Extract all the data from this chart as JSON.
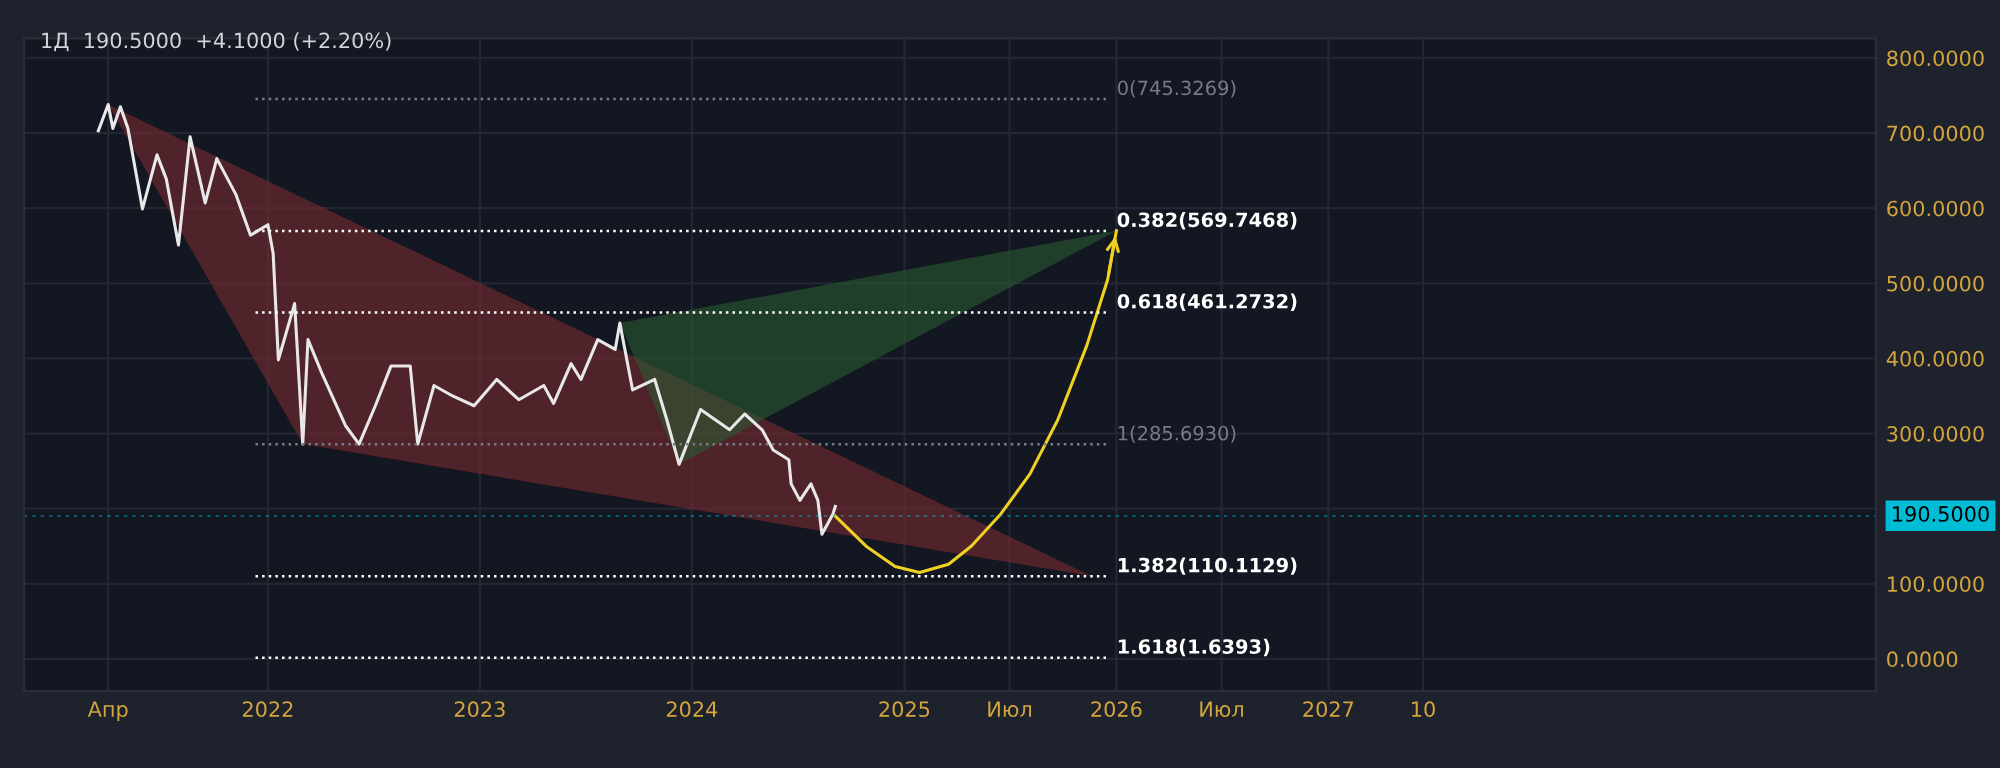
{
  "chart_data": {
    "type": "line",
    "title": "1Д  190.5000  +4.1000 (+2.20%)",
    "xlim": [
      "2020-11-07",
      "2029-08-01"
    ],
    "ylim": [
      -43,
      826
    ],
    "xticks": [
      {
        "value": "2021-04-01",
        "label": "Апр"
      },
      {
        "value": "2022-01-01",
        "label": "2022"
      },
      {
        "value": "2023-01-01",
        "label": "2023"
      },
      {
        "value": "2024-01-01",
        "label": "2024"
      },
      {
        "value": "2025-01-01",
        "label": "2025"
      },
      {
        "value": "2025-07-01",
        "label": "Июл"
      },
      {
        "value": "2026-01-01",
        "label": "2026"
      },
      {
        "value": "2026-07-01",
        "label": "Июл"
      },
      {
        "value": "2027-01-01",
        "label": "2027"
      },
      {
        "value": "2027-06-13",
        "label": "10"
      }
    ],
    "yticks": [
      {
        "value": 0,
        "label": "0.0000"
      },
      {
        "value": 100,
        "label": "100.0000"
      },
      {
        "value": 200,
        "label": null
      },
      {
        "value": 300,
        "label": "300.0000"
      },
      {
        "value": 400,
        "label": "400.0000"
      },
      {
        "value": 500,
        "label": "500.0000"
      },
      {
        "value": 600,
        "label": "600.0000"
      },
      {
        "value": 700,
        "label": "700.0000"
      },
      {
        "value": 800,
        "label": "800.0000"
      }
    ],
    "grid": true,
    "series": [
      {
        "type": "area",
        "color": "#7a2a30",
        "x": [
          "2021-04-01",
          "2022-03-02",
          "2025-11-20"
        ],
        "values": [
          738,
          286,
          110
        ]
      },
      {
        "type": "area",
        "color": "#2a5a30",
        "x": [
          "2023-08-30",
          "2026-01-01",
          "2023-12-10"
        ],
        "values": [
          447,
          570,
          259
        ]
      },
      {
        "color": "#e8e8e8",
        "x": [
          "2021-03-15",
          "2021-04-01",
          "2021-04-09",
          "2021-04-22",
          "2021-05-05",
          "2021-05-30",
          "2021-06-24",
          "2021-07-10",
          "2021-07-31",
          "2021-08-20",
          "2021-09-15",
          "2021-10-05",
          "2021-11-07",
          "2021-12-02",
          "2022-01-01",
          "2022-01-10",
          "2022-01-19",
          "2022-02-16",
          "2022-03-02",
          "2022-03-11",
          "2022-04-04",
          "2022-05-15",
          "2022-06-07",
          "2022-07-05",
          "2022-08-01",
          "2022-09-03",
          "2022-09-16",
          "2022-10-14",
          "2022-11-15",
          "2022-12-22",
          "2023-01-30",
          "2023-03-09",
          "2023-04-21",
          "2023-05-08",
          "2023-06-07",
          "2023-06-24",
          "2023-07-23",
          "2023-08-22",
          "2023-08-30",
          "2023-09-21",
          "2023-10-29",
          "2023-11-19",
          "2023-12-10",
          "2024-01-16",
          "2024-03-06",
          "2024-04-01",
          "2024-05-01",
          "2024-05-20",
          "2024-06-16",
          "2024-06-20",
          "2024-07-05",
          "2024-07-24",
          "2024-08-05",
          "2024-08-12",
          "2024-08-31",
          "2024-09-04"
        ],
        "values": [
          703,
          738,
          706,
          735,
          706,
          599,
          671,
          639,
          551,
          695,
          607,
          666,
          618,
          564,
          578,
          540,
          398,
          473,
          286,
          425,
          380,
          310,
          286,
          337,
          390,
          390,
          286,
          364,
          350,
          337,
          372,
          345,
          364,
          340,
          393,
          372,
          425,
          412,
          447,
          358,
          372,
          318,
          259,
          332,
          305,
          326,
          305,
          278,
          265,
          233,
          211,
          233,
          211,
          166,
          193,
          203
        ]
      },
      {
        "color": "#f0d020",
        "x": [
          "2024-09-04",
          "2024-10-27",
          "2024-12-16",
          "2025-01-27",
          "2025-03-18",
          "2025-04-26",
          "2025-06-16",
          "2025-08-05",
          "2025-09-22",
          "2025-11-11",
          "2025-12-17",
          "2026-01-01"
        ],
        "values": [
          190,
          150,
          123,
          115,
          126,
          150,
          193,
          246,
          318,
          417,
          505,
          570
        ]
      }
    ],
    "ref_lines": [
      {
        "axis": "y",
        "value": 745.3269,
        "label": "0(745.3269)",
        "color": "#787b86",
        "line_style": "dotted"
      },
      {
        "axis": "y",
        "value": 569.7468,
        "label": "0.382(569.7468)",
        "color": "#ffffff",
        "line_style": "dotted"
      },
      {
        "axis": "y",
        "value": 461.2732,
        "label": "0.618(461.2732)",
        "color": "#ffffff",
        "line_style": "dotted"
      },
      {
        "axis": "y",
        "value": 285.693,
        "label": "1(285.6930)",
        "color": "#787b86",
        "line_style": "dotted"
      },
      {
        "axis": "y",
        "value": 110.1129,
        "label": "1.382(110.1129)",
        "color": "#ffffff",
        "line_style": "dotted"
      },
      {
        "axis": "y",
        "value": 1.6393,
        "label": "1.618(1.6393)",
        "color": "#ffffff",
        "line_style": "dotted"
      },
      {
        "axis": "y",
        "value": 190.5,
        "label": "190.5000",
        "color": "#00bcd4",
        "line_style": "dashed"
      }
    ]
  }
}
